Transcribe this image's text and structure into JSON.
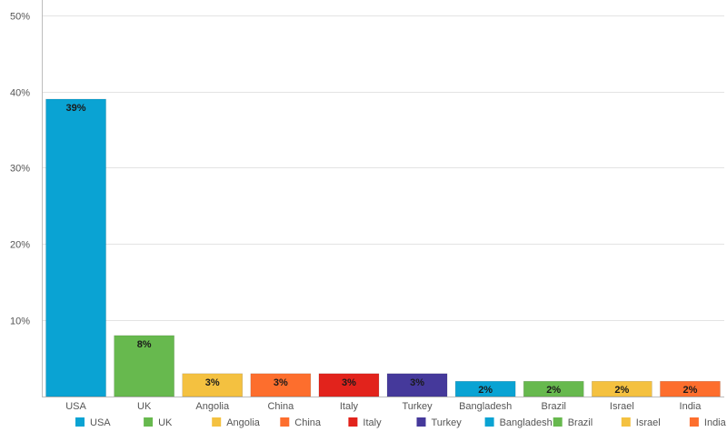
{
  "chart_data": {
    "type": "bar",
    "categories": [
      "USA",
      "UK",
      "Angolia",
      "China",
      "Italy",
      "Turkey",
      "Bangladesh",
      "Brazil",
      "Israel",
      "India"
    ],
    "values": [
      39,
      8,
      3,
      3,
      3,
      3,
      2,
      2,
      2,
      2
    ],
    "data_labels": [
      "39%",
      "8%",
      "3%",
      "3%",
      "3%",
      "3%",
      "2%",
      "2%",
      "2%",
      "2%"
    ],
    "colors": [
      "#0aa3d3",
      "#67b94e",
      "#f4c140",
      "#fd6e2d",
      "#e2231c",
      "#45399b",
      "#0aa3d3",
      "#67b94e",
      "#f4c140",
      "#fd6e2d"
    ],
    "y_ticks": [
      10,
      20,
      30,
      40,
      50
    ],
    "y_tick_labels": [
      "10%",
      "20%",
      "30%",
      "40%",
      "50%"
    ],
    "ylim": [
      0,
      52
    ],
    "grid": true,
    "legend_position": "bottom",
    "legend": [
      "USA",
      "UK",
      "Angolia",
      "China",
      "Italy",
      "Turkey",
      "Bangladesh",
      "Brazil",
      "Israel",
      "India"
    ]
  }
}
